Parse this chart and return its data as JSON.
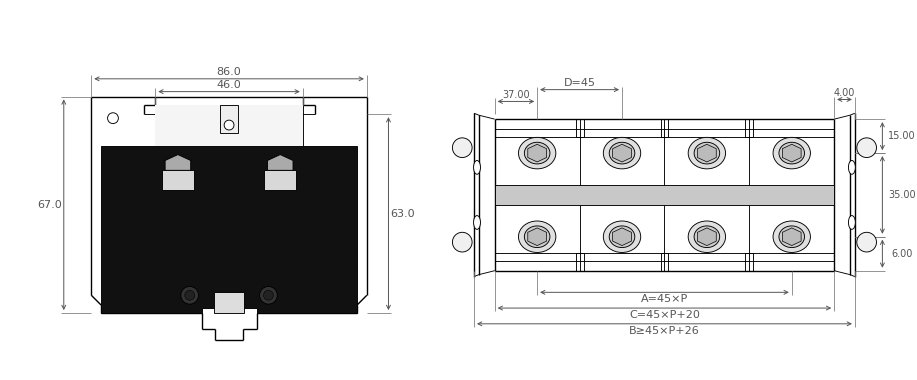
{
  "bg_color": "#ffffff",
  "lc": "#000000",
  "dc": "#555555",
  "fig_width": 9.17,
  "fig_height": 3.8,
  "dpi": 100,
  "left_view": {
    "dim_86": "86.0",
    "dim_46": "46.0",
    "dim_67": "67.0",
    "dim_63": "63.0"
  },
  "right_view": {
    "dim_D": "D=45",
    "dim_37": "37.00",
    "dim_4": "4.00",
    "dim_15": "15.00",
    "dim_35": "35.00",
    "dim_6": "6.00",
    "dim_A": "A=45×P",
    "dim_C": "C=45×P+20",
    "dim_B": "B≥45×P+26"
  }
}
